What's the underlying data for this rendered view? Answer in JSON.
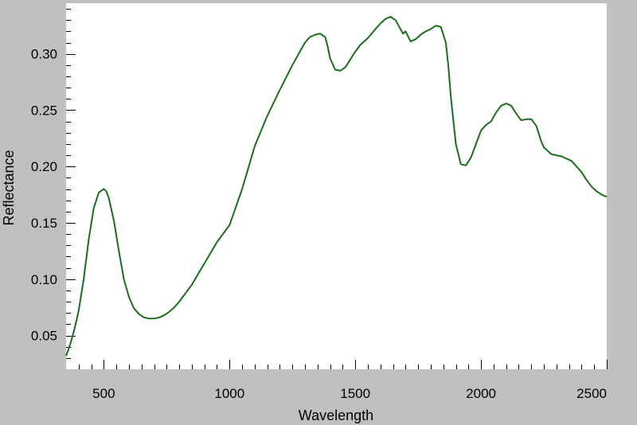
{
  "chart_data": {
    "type": "line",
    "title": "",
    "xlabel": "Wavelength",
    "ylabel": "Reflectance",
    "xlim": [
      350,
      2500
    ],
    "ylim": [
      0.02,
      0.345
    ],
    "grid": false,
    "legend": "none",
    "x_ticks": [
      500,
      1000,
      1500,
      2000,
      2500
    ],
    "x_tick_labels": [
      "500",
      "1000",
      "1500",
      "2000",
      "2500"
    ],
    "y_ticks": [
      0.05,
      0.1,
      0.15,
      0.2,
      0.25,
      0.3
    ],
    "y_tick_labels": [
      "0.05",
      "0.10",
      "0.15",
      "0.20",
      "0.25",
      "0.30"
    ],
    "colors": {
      "line": "#1a6e1a",
      "plot_bg": "#ffffff",
      "frame_bg": "#c0c0c0"
    },
    "series": [
      {
        "x": [
          350,
          360,
          370,
          380,
          390,
          400,
          420,
          440,
          460,
          480,
          500,
          510,
          520,
          540,
          560,
          580,
          600,
          620,
          640,
          660,
          680,
          700,
          720,
          740,
          760,
          780,
          800,
          850,
          900,
          950,
          1000,
          1050,
          1100,
          1150,
          1200,
          1250,
          1300,
          1320,
          1340,
          1360,
          1380,
          1390,
          1400,
          1420,
          1440,
          1460,
          1480,
          1500,
          1520,
          1550,
          1580,
          1600,
          1620,
          1640,
          1660,
          1680,
          1690,
          1700,
          1720,
          1740,
          1760,
          1780,
          1800,
          1820,
          1840,
          1860,
          1870,
          1880,
          1900,
          1920,
          1940,
          1960,
          1980,
          2000,
          2020,
          2040,
          2060,
          2080,
          2100,
          2120,
          2140,
          2160,
          2180,
          2200,
          2220,
          2240,
          2250,
          2260,
          2280,
          2300,
          2320,
          2340,
          2360,
          2380,
          2400,
          2420,
          2440,
          2460,
          2480,
          2500
        ],
        "y": [
          0.032,
          0.038,
          0.045,
          0.053,
          0.062,
          0.072,
          0.1,
          0.135,
          0.163,
          0.177,
          0.18,
          0.178,
          0.172,
          0.152,
          0.125,
          0.1,
          0.084,
          0.074,
          0.069,
          0.066,
          0.065,
          0.065,
          0.066,
          0.068,
          0.071,
          0.075,
          0.08,
          0.095,
          0.114,
          0.133,
          0.148,
          0.18,
          0.218,
          0.245,
          0.268,
          0.29,
          0.31,
          0.315,
          0.317,
          0.318,
          0.315,
          0.307,
          0.296,
          0.286,
          0.285,
          0.288,
          0.295,
          0.302,
          0.308,
          0.314,
          0.322,
          0.327,
          0.331,
          0.333,
          0.33,
          0.322,
          0.318,
          0.32,
          0.311,
          0.313,
          0.317,
          0.32,
          0.322,
          0.325,
          0.324,
          0.31,
          0.29,
          0.262,
          0.22,
          0.202,
          0.201,
          0.208,
          0.22,
          0.232,
          0.237,
          0.24,
          0.248,
          0.254,
          0.256,
          0.254,
          0.247,
          0.241,
          0.242,
          0.242,
          0.236,
          0.222,
          0.217,
          0.215,
          0.211,
          0.21,
          0.209,
          0.207,
          0.205,
          0.2,
          0.195,
          0.188,
          0.182,
          0.178,
          0.175,
          0.173
        ]
      }
    ]
  }
}
